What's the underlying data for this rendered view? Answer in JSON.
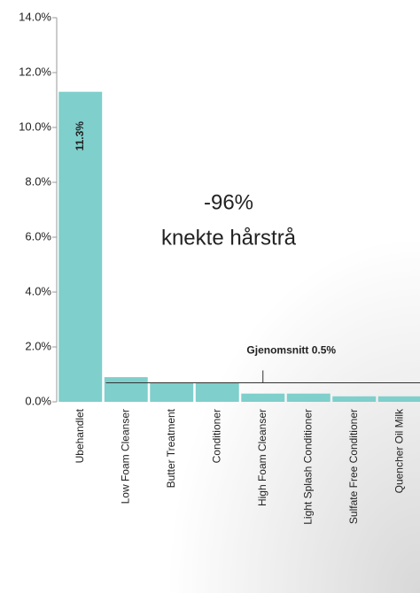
{
  "chart_data": {
    "type": "bar",
    "categories": [
      "Ubehandlet",
      "Low Foam Cleanser",
      "Butter Treatment",
      "Conditioner",
      "High Foam Cleanser",
      "Light Splash Conditioner",
      "Sulfate Free Conditioner",
      "Quencher Oil Milk"
    ],
    "values": [
      11.3,
      0.9,
      0.7,
      0.7,
      0.3,
      0.3,
      0.2,
      0.2
    ],
    "value_labels": [
      "11.3%",
      null,
      null,
      null,
      null,
      null,
      null,
      null
    ],
    "color": "#7fcfcc",
    "ylim": [
      0,
      14
    ],
    "yticks": [
      {
        "value": 0,
        "label": "0.0%"
      },
      {
        "value": 2,
        "label": "2.0%"
      },
      {
        "value": 4,
        "label": "4.0%"
      },
      {
        "value": 6,
        "label": "6.0%"
      },
      {
        "value": 8,
        "label": "8.0%"
      },
      {
        "value": 10,
        "label": "10.0%"
      },
      {
        "value": 12,
        "label": "12.0%"
      },
      {
        "value": 14,
        "label": "14.0%"
      }
    ],
    "annotations": [
      "-96%",
      "knekte hårstrå"
    ],
    "average": {
      "value": 0.5,
      "label": "Gjenomsnitt 0.5%"
    }
  }
}
